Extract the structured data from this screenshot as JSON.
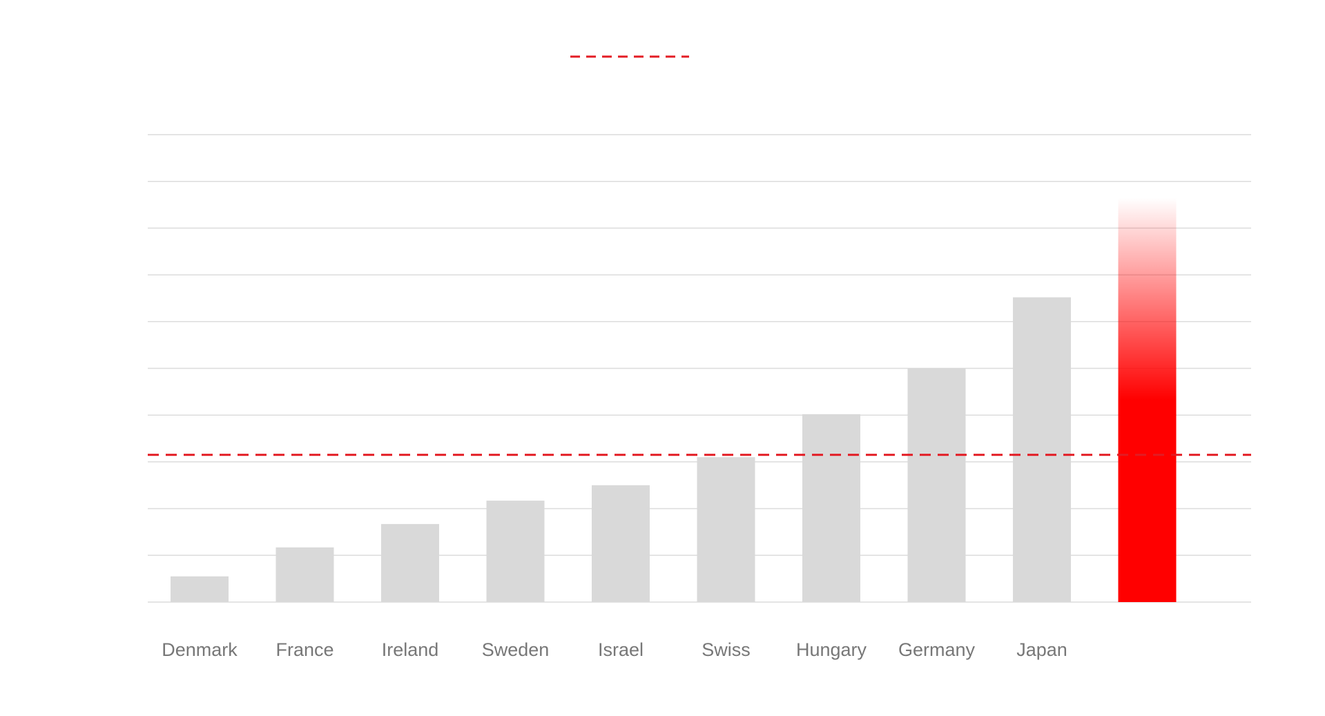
{
  "chart_data": {
    "type": "bar",
    "title": "",
    "xlabel": "",
    "ylabel": "",
    "categories": [
      "Denmark",
      "France",
      "Ireland",
      "Sweden",
      "Israel",
      "Swiss",
      "Hungary",
      "Germany",
      "Japan",
      ""
    ],
    "values": [
      0.55,
      1.17,
      1.67,
      2.17,
      2.5,
      3.1,
      4.02,
      5.0,
      6.52,
      8.65
    ],
    "highlight_index": 9,
    "reference_line": {
      "value": 3.15
    },
    "ylim": [
      0,
      10
    ],
    "grid": true,
    "legend": "top-center",
    "colors": {
      "bar": "#d9d9d9",
      "highlight": "#ff0000",
      "reference_line": "#e31b23",
      "grid": "#dcdcdc",
      "tick_label": "#777777"
    }
  }
}
